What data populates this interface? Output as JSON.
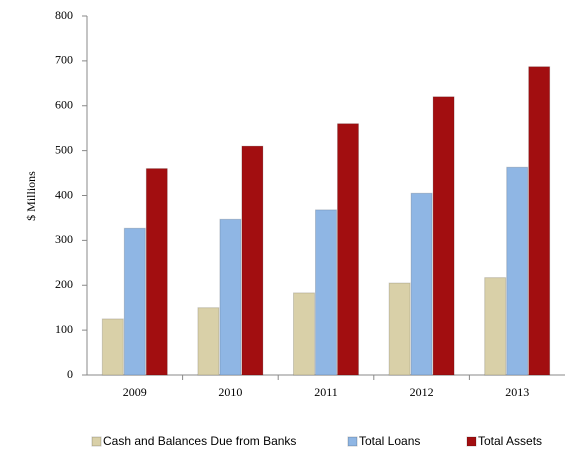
{
  "chart_data": {
    "type": "bar",
    "y_label": "$ Millions",
    "categories": [
      "2009",
      "2010",
      "2011",
      "2012",
      "2013"
    ],
    "series": [
      {
        "name": "Cash and Balances Due from Banks",
        "color": "#d9d0a8",
        "values": [
          125,
          150,
          183,
          205,
          217
        ]
      },
      {
        "name": "Total Loans",
        "color": "#8fb6e4",
        "values": [
          327,
          347,
          368,
          405,
          463
        ]
      },
      {
        "name": "Total Assets",
        "color": "#a20e10",
        "values": [
          460,
          510,
          560,
          620,
          687
        ]
      }
    ],
    "ylim": [
      0,
      800
    ],
    "yticks": [
      0,
      100,
      200,
      300,
      400,
      500,
      600,
      700,
      800
    ],
    "grid": false,
    "legend": "bottom"
  }
}
